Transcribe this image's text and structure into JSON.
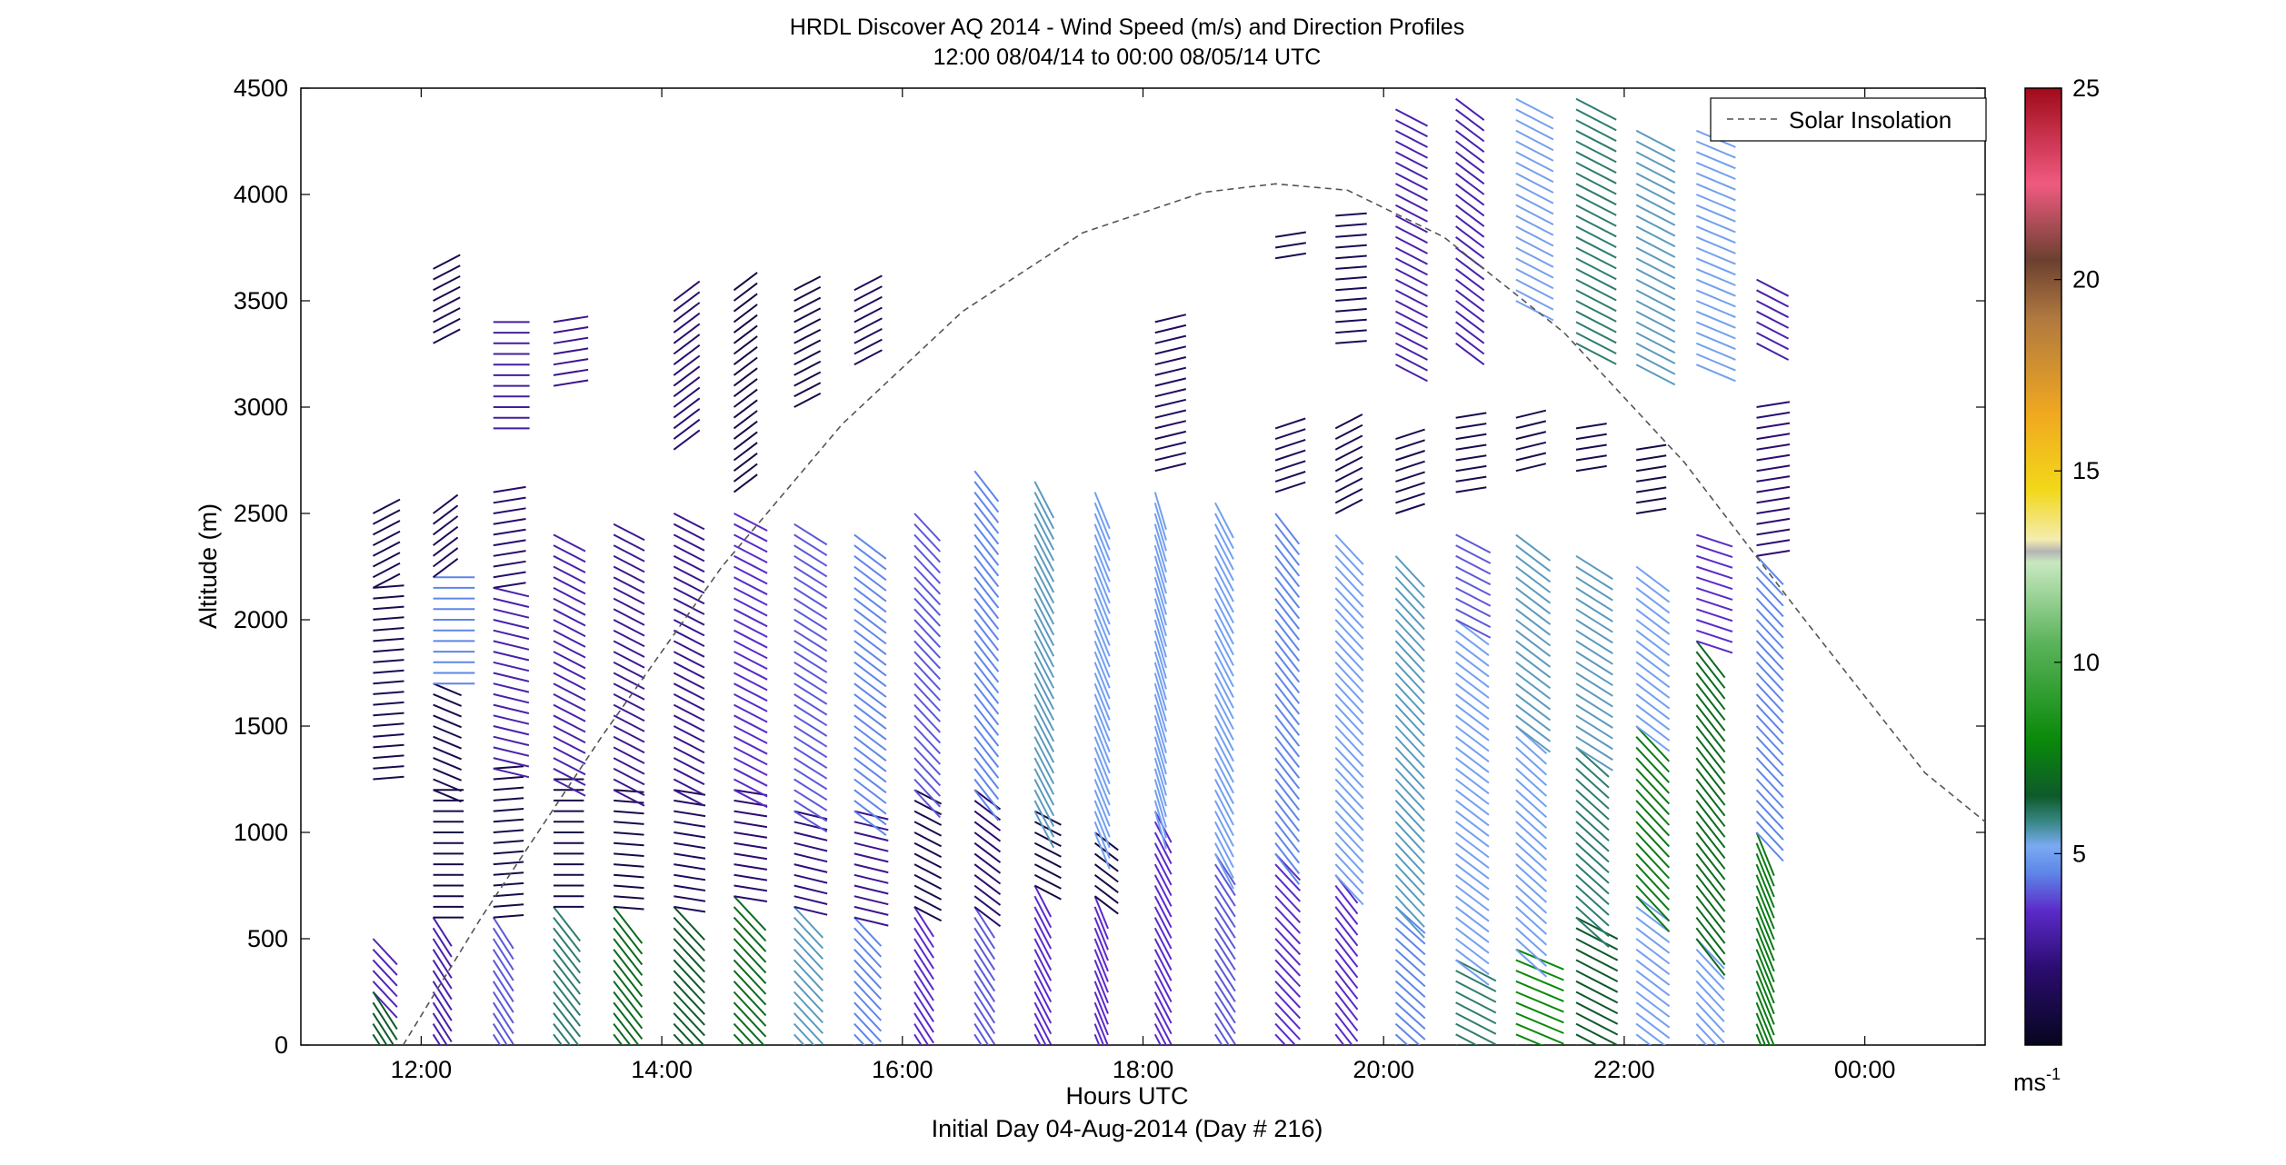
{
  "chart_data": {
    "type": "scatter",
    "title": "HRDL Discover AQ 2014 - Wind Speed (m/s) and Direction Profiles",
    "subtitle": "12:00 08/04/14 to 00:00 08/05/14  UTC",
    "xlabel": "Hours UTC",
    "xlabel2": "Initial Day 04-Aug-2014 (Day # 216)",
    "ylabel": "Altitude (m)",
    "xlim": [
      11.0,
      25.0
    ],
    "ylim": [
      0,
      4500
    ],
    "x_ticks": [
      {
        "value": 12,
        "label": "12:00"
      },
      {
        "value": 14,
        "label": "14:00"
      },
      {
        "value": 16,
        "label": "16:00"
      },
      {
        "value": 18,
        "label": "18:00"
      },
      {
        "value": 20,
        "label": "20:00"
      },
      {
        "value": 22,
        "label": "22:00"
      },
      {
        "value": 24,
        "label": "00:00"
      }
    ],
    "y_ticks": [
      {
        "value": 0,
        "label": "0"
      },
      {
        "value": 500,
        "label": "500"
      },
      {
        "value": 1000,
        "label": "1000"
      },
      {
        "value": 1500,
        "label": "1500"
      },
      {
        "value": 2000,
        "label": "2000"
      },
      {
        "value": 2500,
        "label": "2500"
      },
      {
        "value": 3000,
        "label": "3000"
      },
      {
        "value": 3500,
        "label": "3500"
      },
      {
        "value": 4000,
        "label": "4000"
      },
      {
        "value": 4500,
        "label": "4500"
      }
    ],
    "grid": false,
    "legend": {
      "placement": "top-right",
      "entries": [
        "Solar Insolation"
      ]
    },
    "colorbar": {
      "range": [
        0,
        25
      ],
      "ticks": [
        {
          "value": 5,
          "label": "5"
        },
        {
          "value": 10,
          "label": "10"
        },
        {
          "value": 15,
          "label": "15"
        },
        {
          "value": 20,
          "label": "20"
        },
        {
          "value": 25,
          "label": "25"
        }
      ],
      "unit_base": "ms",
      "unit_exp": "-1",
      "stops": [
        {
          "v": 0,
          "c": "#06061e"
        },
        {
          "v": 2,
          "c": "#2b0c70"
        },
        {
          "v": 3.5,
          "c": "#5b2ac8"
        },
        {
          "v": 4.5,
          "c": "#5e86e8"
        },
        {
          "v": 5.2,
          "c": "#7aaaf2"
        },
        {
          "v": 5.8,
          "c": "#3a8a8a"
        },
        {
          "v": 6.5,
          "c": "#0e5a2a"
        },
        {
          "v": 8,
          "c": "#0a8a0a"
        },
        {
          "v": 10.5,
          "c": "#5bb35b"
        },
        {
          "v": 12.6,
          "c": "#c8e8c0"
        },
        {
          "v": 12.9,
          "c": "#b4b4b4"
        },
        {
          "v": 13.2,
          "c": "#f4ecb0"
        },
        {
          "v": 14.5,
          "c": "#f2d81a"
        },
        {
          "v": 16.5,
          "c": "#f0a820"
        },
        {
          "v": 19,
          "c": "#b07840"
        },
        {
          "v": 20.5,
          "c": "#6b4030"
        },
        {
          "v": 22.5,
          "c": "#f05a80"
        },
        {
          "v": 25,
          "c": "#a00a1a"
        }
      ]
    },
    "solar_insolation": {
      "style": "dashed",
      "color": "#555555",
      "points": [
        [
          11.85,
          0
        ],
        [
          12.5,
          600
        ],
        [
          13.5,
          1450
        ],
        [
          14.5,
          2250
        ],
        [
          15.5,
          2920
        ],
        [
          16.5,
          3450
        ],
        [
          17.5,
          3820
        ],
        [
          18.5,
          4010
        ],
        [
          19.1,
          4050
        ],
        [
          19.7,
          4020
        ],
        [
          20.5,
          3800
        ],
        [
          21.5,
          3350
        ],
        [
          22.5,
          2740
        ],
        [
          23.5,
          2000
        ],
        [
          24.5,
          1280
        ],
        [
          25.0,
          1050
        ]
      ]
    },
    "profiles": [
      {
        "t": 11.6,
        "segments": [
          {
            "z0": 1250,
            "z1": 2150,
            "speed": 1.2,
            "dir": 265
          },
          {
            "z0": 2150,
            "z1": 2500,
            "speed": 1.2,
            "dir": 240
          },
          {
            "z0": 250,
            "z1": 500,
            "speed": 3.2,
            "dir": 320
          },
          {
            "z0": 50,
            "z1": 250,
            "speed": 6.5,
            "dir": 330
          }
        ]
      },
      {
        "t": 12.1,
        "segments": [
          {
            "z0": 0,
            "z1": 600,
            "speed": 3.0,
            "dir": 330
          },
          {
            "z0": 600,
            "z1": 1200,
            "speed": 1.0,
            "dir": 270
          },
          {
            "z0": 1200,
            "z1": 1700,
            "speed": 1.2,
            "dir": 295
          },
          {
            "z0": 1700,
            "z1": 2200,
            "speed": 4.5,
            "dir": 270
          },
          {
            "z0": 2200,
            "z1": 2500,
            "speed": 1.5,
            "dir": 230
          },
          {
            "z0": 3300,
            "z1": 3650,
            "speed": 1.2,
            "dir": 240
          }
        ]
      },
      {
        "t": 12.6,
        "segments": [
          {
            "z0": 0,
            "z1": 600,
            "speed": 4.0,
            "dir": 330
          },
          {
            "z0": 600,
            "z1": 1300,
            "speed": 1.0,
            "dir": 265
          },
          {
            "z0": 1300,
            "z1": 2150,
            "speed": 3.0,
            "dir": 285
          },
          {
            "z0": 2150,
            "z1": 2600,
            "speed": 1.8,
            "dir": 260
          },
          {
            "z0": 2900,
            "z1": 3400,
            "speed": 2.8,
            "dir": 270
          }
        ]
      },
      {
        "t": 13.1,
        "segments": [
          {
            "z0": 0,
            "z1": 650,
            "speed": 6.0,
            "dir": 325
          },
          {
            "z0": 650,
            "z1": 1250,
            "speed": 1.0,
            "dir": 270
          },
          {
            "z0": 1250,
            "z1": 2400,
            "speed": 3.0,
            "dir": 300
          },
          {
            "z0": 3100,
            "z1": 3400,
            "speed": 2.5,
            "dir": 260
          }
        ]
      },
      {
        "t": 13.6,
        "segments": [
          {
            "z0": 0,
            "z1": 650,
            "speed": 7.0,
            "dir": 325
          },
          {
            "z0": 650,
            "z1": 1200,
            "speed": 1.0,
            "dir": 275
          },
          {
            "z0": 1200,
            "z1": 2450,
            "speed": 2.6,
            "dir": 300
          }
        ]
      },
      {
        "t": 14.1,
        "segments": [
          {
            "z0": 0,
            "z1": 650,
            "speed": 6.5,
            "dir": 320
          },
          {
            "z0": 650,
            "z1": 1200,
            "speed": 1.5,
            "dir": 280
          },
          {
            "z0": 1200,
            "z1": 2500,
            "speed": 2.5,
            "dir": 300
          },
          {
            "z0": 2800,
            "z1": 3500,
            "speed": 2.0,
            "dir": 230
          }
        ]
      },
      {
        "t": 14.6,
        "segments": [
          {
            "z0": 0,
            "z1": 700,
            "speed": 7.0,
            "dir": 320
          },
          {
            "z0": 700,
            "z1": 1200,
            "speed": 2.0,
            "dir": 280
          },
          {
            "z0": 1200,
            "z1": 2500,
            "speed": 3.5,
            "dir": 300
          },
          {
            "z0": 2600,
            "z1": 3550,
            "speed": 1.0,
            "dir": 230
          }
        ]
      },
      {
        "t": 15.1,
        "segments": [
          {
            "z0": 0,
            "z1": 650,
            "speed": 5.5,
            "dir": 320
          },
          {
            "z0": 650,
            "z1": 1100,
            "speed": 2.2,
            "dir": 285
          },
          {
            "z0": 1100,
            "z1": 2450,
            "speed": 4.0,
            "dir": 305
          },
          {
            "z0": 3000,
            "z1": 3550,
            "speed": 1.0,
            "dir": 240
          }
        ]
      },
      {
        "t": 15.6,
        "segments": [
          {
            "z0": 0,
            "z1": 600,
            "speed": 4.5,
            "dir": 320
          },
          {
            "z0": 600,
            "z1": 1100,
            "speed": 2.5,
            "dir": 285
          },
          {
            "z0": 1100,
            "z1": 2400,
            "speed": 4.5,
            "dir": 310
          },
          {
            "z0": 3200,
            "z1": 3550,
            "speed": 1.5,
            "dir": 240
          }
        ]
      },
      {
        "t": 16.1,
        "segments": [
          {
            "z0": 0,
            "z1": 650,
            "speed": 3.5,
            "dir": 330
          },
          {
            "z0": 650,
            "z1": 1200,
            "speed": 1.2,
            "dir": 300
          },
          {
            "z0": 1200,
            "z1": 2500,
            "speed": 4.0,
            "dir": 320
          }
        ]
      },
      {
        "t": 16.6,
        "segments": [
          {
            "z0": 0,
            "z1": 650,
            "speed": 4.0,
            "dir": 330
          },
          {
            "z0": 650,
            "z1": 1200,
            "speed": 2.0,
            "dir": 310
          },
          {
            "z0": 1200,
            "z1": 2700,
            "speed": 4.5,
            "dir": 325
          }
        ]
      },
      {
        "t": 17.1,
        "segments": [
          {
            "z0": 0,
            "z1": 750,
            "speed": 3.5,
            "dir": 335
          },
          {
            "z0": 750,
            "z1": 1100,
            "speed": 1.0,
            "dir": 300
          },
          {
            "z0": 1100,
            "z1": 2650,
            "speed": 5.5,
            "dir": 335
          }
        ]
      },
      {
        "t": 17.6,
        "segments": [
          {
            "z0": 0,
            "z1": 700,
            "speed": 3.5,
            "dir": 340
          },
          {
            "z0": 700,
            "z1": 1000,
            "speed": 1.0,
            "dir": 310
          },
          {
            "z0": 1000,
            "z1": 2600,
            "speed": 5.0,
            "dir": 340
          }
        ]
      },
      {
        "t": 18.1,
        "segments": [
          {
            "z0": 0,
            "z1": 1100,
            "speed": 3.5,
            "dir": 335
          },
          {
            "z0": 1100,
            "z1": 2600,
            "speed": 5.0,
            "dir": 345
          },
          {
            "z0": 2700,
            "z1": 3400,
            "speed": 1.5,
            "dir": 255
          }
        ]
      },
      {
        "t": 18.6,
        "segments": [
          {
            "z0": 0,
            "z1": 900,
            "speed": 4.0,
            "dir": 330
          },
          {
            "z0": 900,
            "z1": 2550,
            "speed": 5.0,
            "dir": 335
          }
        ]
      },
      {
        "t": 19.1,
        "segments": [
          {
            "z0": 0,
            "z1": 900,
            "speed": 3.5,
            "dir": 320
          },
          {
            "z0": 900,
            "z1": 2500,
            "speed": 4.5,
            "dir": 325
          },
          {
            "z0": 2600,
            "z1": 2900,
            "speed": 1.5,
            "dir": 250
          },
          {
            "z0": 3700,
            "z1": 3800,
            "speed": 1.2,
            "dir": 260
          }
        ]
      },
      {
        "t": 19.6,
        "segments": [
          {
            "z0": 0,
            "z1": 800,
            "speed": 3.5,
            "dir": 325
          },
          {
            "z0": 800,
            "z1": 2400,
            "speed": 5.0,
            "dir": 320
          },
          {
            "z0": 2500,
            "z1": 2900,
            "speed": 1.2,
            "dir": 240
          },
          {
            "z0": 3300,
            "z1": 3900,
            "speed": 1.3,
            "dir": 265
          }
        ]
      },
      {
        "t": 20.1,
        "segments": [
          {
            "z0": 0,
            "z1": 650,
            "speed": 4.5,
            "dir": 315
          },
          {
            "z0": 650,
            "z1": 2300,
            "speed": 5.5,
            "dir": 320
          },
          {
            "z0": 2500,
            "z1": 2850,
            "speed": 1.2,
            "dir": 250
          },
          {
            "z0": 3200,
            "z1": 4400,
            "speed": 3.0,
            "dir": 300
          }
        ]
      },
      {
        "t": 20.6,
        "segments": [
          {
            "z0": 0,
            "z1": 400,
            "speed": 6.0,
            "dir": 300
          },
          {
            "z0": 400,
            "z1": 2000,
            "speed": 5.0,
            "dir": 310
          },
          {
            "z0": 2000,
            "z1": 2400,
            "speed": 4.0,
            "dir": 300
          },
          {
            "z0": 2600,
            "z1": 2950,
            "speed": 1.2,
            "dir": 260
          },
          {
            "z0": 3300,
            "z1": 4450,
            "speed": 3.0,
            "dir": 310
          }
        ]
      },
      {
        "t": 21.1,
        "segments": [
          {
            "z0": 0,
            "z1": 450,
            "speed": 8.0,
            "dir": 295
          },
          {
            "z0": 450,
            "z1": 1500,
            "speed": 5.0,
            "dir": 315
          },
          {
            "z0": 1500,
            "z1": 2400,
            "speed": 5.5,
            "dir": 310
          },
          {
            "z0": 2700,
            "z1": 2950,
            "speed": 1.2,
            "dir": 255
          },
          {
            "z0": 3500,
            "z1": 4450,
            "speed": 5.0,
            "dir": 300
          }
        ]
      },
      {
        "t": 21.6,
        "segments": [
          {
            "z0": 0,
            "z1": 600,
            "speed": 6.5,
            "dir": 300
          },
          {
            "z0": 600,
            "z1": 1400,
            "speed": 6.0,
            "dir": 315
          },
          {
            "z0": 1400,
            "z1": 2300,
            "speed": 5.5,
            "dir": 305
          },
          {
            "z0": 2700,
            "z1": 2900,
            "speed": 1.2,
            "dir": 260
          },
          {
            "z0": 3300,
            "z1": 4450,
            "speed": 6.0,
            "dir": 300
          }
        ]
      },
      {
        "t": 22.1,
        "segments": [
          {
            "z0": 0,
            "z1": 700,
            "speed": 5.0,
            "dir": 310
          },
          {
            "z0": 700,
            "z1": 1500,
            "speed": 7.5,
            "dir": 320
          },
          {
            "z0": 1500,
            "z1": 2250,
            "speed": 5.0,
            "dir": 310
          },
          {
            "z0": 2500,
            "z1": 2800,
            "speed": 1.0,
            "dir": 260
          },
          {
            "z0": 3200,
            "z1": 4300,
            "speed": 5.5,
            "dir": 300
          }
        ]
      },
      {
        "t": 22.6,
        "segments": [
          {
            "z0": 0,
            "z1": 500,
            "speed": 5.0,
            "dir": 320
          },
          {
            "z0": 500,
            "z1": 1900,
            "speed": 7.0,
            "dir": 325
          },
          {
            "z0": 1900,
            "z1": 2400,
            "speed": 3.5,
            "dir": 290
          },
          {
            "z0": 3200,
            "z1": 4300,
            "speed": 5.0,
            "dir": 295
          }
        ]
      },
      {
        "t": 23.1,
        "segments": [
          {
            "z0": 50,
            "z1": 1000,
            "speed": 7.5,
            "dir": 340
          },
          {
            "z0": 1000,
            "z1": 2300,
            "speed": 4.5,
            "dir": 320
          },
          {
            "z0": 2300,
            "z1": 3000,
            "speed": 2.0,
            "dir": 260
          },
          {
            "z0": 3300,
            "z1": 3600,
            "speed": 3.0,
            "dir": 300
          }
        ]
      }
    ]
  }
}
